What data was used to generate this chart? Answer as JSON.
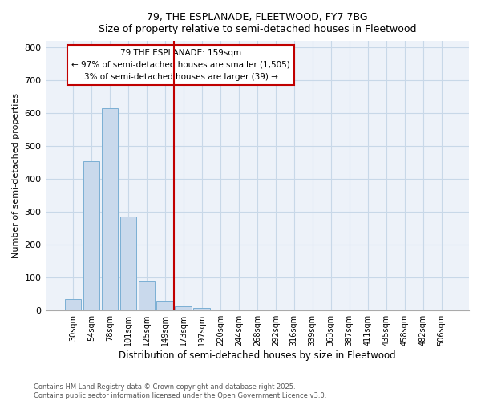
{
  "title_line1": "79, THE ESPLANADE, FLEETWOOD, FY7 7BG",
  "title_line2": "Size of property relative to semi-detached houses in Fleetwood",
  "xlabel": "Distribution of semi-detached houses by size in Fleetwood",
  "ylabel": "Number of semi-detached properties",
  "footnote1": "Contains HM Land Registry data © Crown copyright and database right 2025.",
  "footnote2": "Contains public sector information licensed under the Open Government Licence v3.0.",
  "annotation_line1": "79 THE ESPLANADE: 159sqm",
  "annotation_line2": "← 97% of semi-detached houses are smaller (1,505)",
  "annotation_line3": "3% of semi-detached houses are larger (39) →",
  "bar_labels": [
    "30sqm",
    "54sqm",
    "78sqm",
    "101sqm",
    "125sqm",
    "149sqm",
    "173sqm",
    "197sqm",
    "220sqm",
    "244sqm",
    "268sqm",
    "292sqm",
    "316sqm",
    "339sqm",
    "363sqm",
    "387sqm",
    "411sqm",
    "435sqm",
    "458sqm",
    "482sqm",
    "506sqm"
  ],
  "bar_values": [
    35,
    455,
    615,
    285,
    90,
    30,
    12,
    8,
    4,
    2,
    0,
    0,
    0,
    0,
    0,
    0,
    0,
    0,
    0,
    0,
    0
  ],
  "bar_color": "#c9d9ec",
  "bar_edge_color": "#7bafd4",
  "vline_index": 5,
  "vline_color": "#c00000",
  "box_color": "#c00000",
  "ylim": [
    0,
    820
  ],
  "yticks": [
    0,
    100,
    200,
    300,
    400,
    500,
    600,
    700,
    800
  ],
  "grid_color": "#c8d8e8",
  "bg_color": "#edf2f9"
}
